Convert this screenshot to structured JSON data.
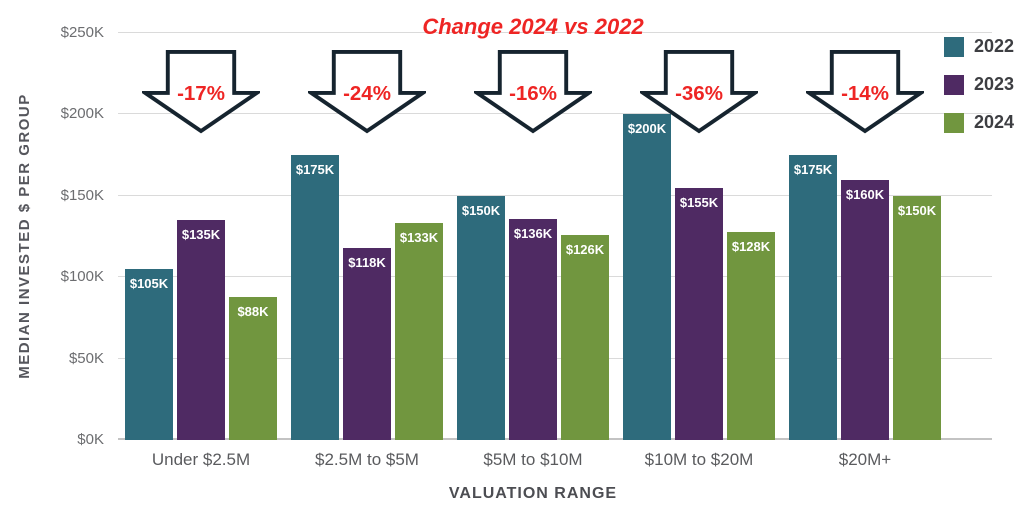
{
  "title": "Change 2024 vs 2022",
  "y_axis": {
    "label": "MEDIAN INVESTED $ PER GROUP",
    "ticks": [
      "$0K",
      "$50K",
      "$100K",
      "$150K",
      "$200K",
      "$250K"
    ]
  },
  "x_axis": {
    "label": "VALUATION RANGE"
  },
  "legend": [
    {
      "label": "2022",
      "color": "#2e6b7c"
    },
    {
      "label": "2023",
      "color": "#4f2a63"
    },
    {
      "label": "2024",
      "color": "#71963f"
    }
  ],
  "colors": {
    "red": "#ee2524",
    "arrow_outline": "#16242f",
    "grid": "#dadada",
    "axis_text": "#55565c"
  },
  "chart_data": {
    "type": "bar",
    "title": "Change 2024 vs 2022",
    "xlabel": "VALUATION RANGE",
    "ylabel": "MEDIAN INVESTED $ PER GROUP",
    "ylim": [
      0,
      250
    ],
    "y_tick_step": 50,
    "grid": true,
    "legend_position": "top-right",
    "categories": [
      "Under $2.5M",
      "$2.5M to $5M",
      "$5M to $10M",
      "$10M to $20M",
      "$20M+"
    ],
    "series": [
      {
        "name": "2022",
        "color": "#2e6b7c",
        "values": [
          105,
          175,
          150,
          200,
          175
        ],
        "labels": [
          "$105K",
          "$175K",
          "$150K",
          "$200K",
          "$175K"
        ]
      },
      {
        "name": "2023",
        "color": "#4f2a63",
        "values": [
          135,
          118,
          136,
          155,
          160
        ],
        "labels": [
          "$135K",
          "$118K",
          "$136K",
          "$155K",
          "$160K"
        ]
      },
      {
        "name": "2024",
        "color": "#71963f",
        "values": [
          88,
          133,
          126,
          128,
          150
        ],
        "labels": [
          "$88K",
          "$133K",
          "$126K",
          "$128K",
          "$150K"
        ]
      }
    ],
    "annotations": {
      "changes": [
        "-17%",
        "-24%",
        "-16%",
        "-36%",
        "-14%"
      ]
    }
  }
}
